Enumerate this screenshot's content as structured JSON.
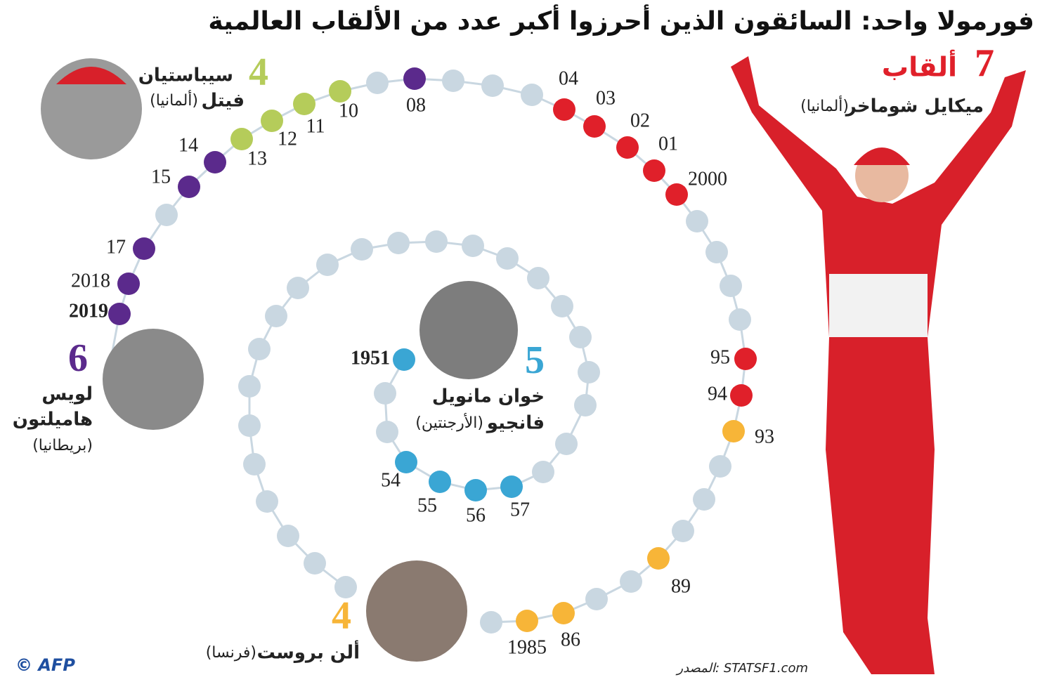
{
  "title": "فورمولا واحد: السائقون الذين أحرزوا أكبر عدد من الألقاب العالمية",
  "drivers": [
    {
      "count": "7",
      "count_word": "ألقاب",
      "name": "ميكايل شوماخر",
      "country": "(ألمانيا)",
      "years": [
        "94",
        "95",
        "2000",
        "01",
        "02",
        "03",
        "04"
      ]
    },
    {
      "count": "6",
      "name_line1": "لويس",
      "name_line2": "هاميلتون",
      "country": "(بريطانيا)",
      "years": [
        "08",
        "14",
        "15",
        "17",
        "2018",
        "2019"
      ]
    },
    {
      "count": "5",
      "name_line1": "خوان مانويل",
      "name_line2": "فانجيو",
      "country": "(الأرجنتين)",
      "years": [
        "1951",
        "54",
        "55",
        "56",
        "57"
      ]
    },
    {
      "count": "4",
      "name_line1": "سيباستيان",
      "name_line2": "فيتل",
      "country": "(ألمانيا)",
      "years": [
        "10",
        "11",
        "12",
        "13"
      ]
    },
    {
      "count": "4",
      "name": "ألن بروست",
      "country": "(فرنسا)",
      "years": [
        "1985",
        "86",
        "89",
        "93"
      ]
    }
  ],
  "source": "المصدر: STATSF1.com",
  "credit": "© AFP"
}
